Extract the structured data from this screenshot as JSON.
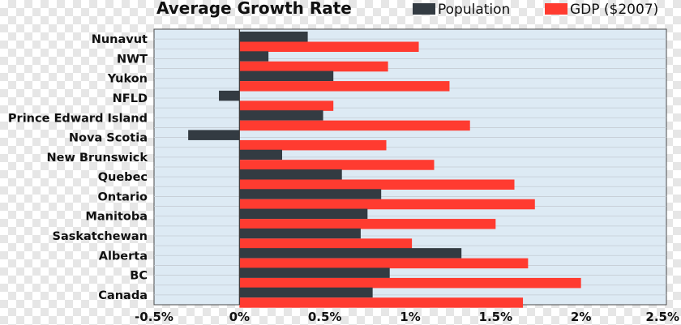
{
  "chart_data": {
    "type": "bar",
    "orientation": "horizontal",
    "title": "Average Growth Rate",
    "categories": [
      "Nunavut",
      "NWT",
      "Yukon",
      "NFLD",
      "Prince Edward Island",
      "Nova Scotia",
      "New Brunswick",
      "Quebec",
      "Ontario",
      "Manitoba",
      "Saskatchewan",
      "Alberta",
      "BC",
      "Canada"
    ],
    "series": [
      {
        "name": "Population",
        "color": "#333b42",
        "values": [
          0.4,
          0.17,
          0.55,
          -0.12,
          0.49,
          -0.3,
          0.25,
          0.6,
          0.83,
          0.75,
          0.71,
          1.3,
          0.88,
          0.78
        ]
      },
      {
        "name": "GDP ($2007)",
        "color": "#ff3b30",
        "values": [
          1.05,
          0.87,
          1.23,
          0.55,
          1.35,
          0.86,
          1.14,
          1.61,
          1.73,
          1.5,
          1.01,
          1.69,
          2.0,
          1.66
        ]
      }
    ],
    "xlim": [
      -0.5,
      2.5
    ],
    "xticks": [
      "-0.5%",
      "0%",
      "0.5%",
      "1%",
      "1.5%",
      "2%",
      "2.5%"
    ],
    "xlabel": "",
    "ylabel": "",
    "grid": true,
    "legend": "top-right",
    "plot_background": "#ddeaf4"
  }
}
